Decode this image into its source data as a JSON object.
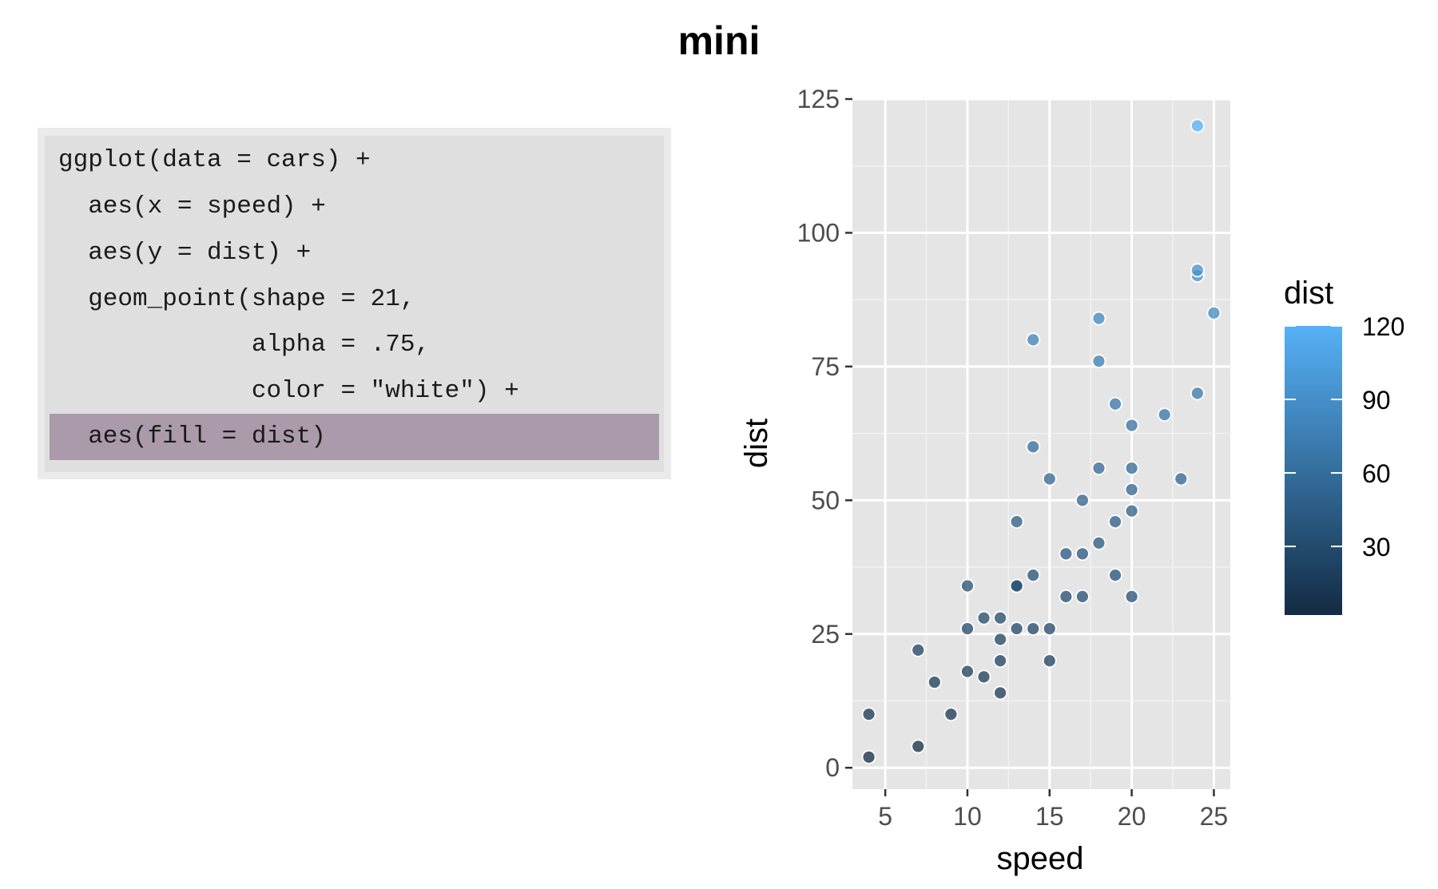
{
  "title": "mini",
  "code": {
    "lines": [
      "ggplot(data = cars) +",
      "  aes(x = speed) +",
      "  aes(y = dist) +",
      "  geom_point(shape = 21,",
      "             alpha = .75,",
      "             color = \"white\") +",
      "  aes(fill = dist)"
    ],
    "highlighted_line": 6,
    "highlight_color": "#aa9aaa"
  },
  "chart_data": {
    "type": "scatter",
    "xlabel": "speed",
    "ylabel": "dist",
    "xlim": [
      3.0,
      26.0
    ],
    "ylim": [
      -4,
      125
    ],
    "xticks": [
      5,
      10,
      15,
      20,
      25
    ],
    "yticks": [
      0,
      25,
      50,
      75,
      100,
      125
    ],
    "grid": true,
    "panel_background": "#e5e5e5",
    "legend": {
      "title": "dist",
      "type": "colorbar",
      "placement": "right",
      "breaks": [
        120,
        90,
        60,
        30
      ],
      "range": [
        2,
        120
      ],
      "low_color": "#132b43",
      "high_color": "#56b1f7"
    },
    "points": [
      {
        "x": 4,
        "y": 2
      },
      {
        "x": 4,
        "y": 10
      },
      {
        "x": 7,
        "y": 4
      },
      {
        "x": 7,
        "y": 22
      },
      {
        "x": 8,
        "y": 16
      },
      {
        "x": 9,
        "y": 10
      },
      {
        "x": 10,
        "y": 18
      },
      {
        "x": 10,
        "y": 26
      },
      {
        "x": 10,
        "y": 34
      },
      {
        "x": 11,
        "y": 17
      },
      {
        "x": 11,
        "y": 28
      },
      {
        "x": 12,
        "y": 14
      },
      {
        "x": 12,
        "y": 20
      },
      {
        "x": 12,
        "y": 24
      },
      {
        "x": 12,
        "y": 28
      },
      {
        "x": 13,
        "y": 26
      },
      {
        "x": 13,
        "y": 34
      },
      {
        "x": 13,
        "y": 34
      },
      {
        "x": 13,
        "y": 46
      },
      {
        "x": 14,
        "y": 26
      },
      {
        "x": 14,
        "y": 36
      },
      {
        "x": 14,
        "y": 60
      },
      {
        "x": 14,
        "y": 80
      },
      {
        "x": 15,
        "y": 20
      },
      {
        "x": 15,
        "y": 26
      },
      {
        "x": 15,
        "y": 54
      },
      {
        "x": 16,
        "y": 32
      },
      {
        "x": 16,
        "y": 40
      },
      {
        "x": 17,
        "y": 32
      },
      {
        "x": 17,
        "y": 40
      },
      {
        "x": 17,
        "y": 50
      },
      {
        "x": 18,
        "y": 42
      },
      {
        "x": 18,
        "y": 56
      },
      {
        "x": 18,
        "y": 76
      },
      {
        "x": 18,
        "y": 84
      },
      {
        "x": 19,
        "y": 36
      },
      {
        "x": 19,
        "y": 46
      },
      {
        "x": 19,
        "y": 68
      },
      {
        "x": 20,
        "y": 32
      },
      {
        "x": 20,
        "y": 48
      },
      {
        "x": 20,
        "y": 52
      },
      {
        "x": 20,
        "y": 56
      },
      {
        "x": 20,
        "y": 64
      },
      {
        "x": 22,
        "y": 66
      },
      {
        "x": 23,
        "y": 54
      },
      {
        "x": 24,
        "y": 70
      },
      {
        "x": 24,
        "y": 92
      },
      {
        "x": 24,
        "y": 93
      },
      {
        "x": 24,
        "y": 120
      },
      {
        "x": 25,
        "y": 85
      }
    ],
    "point_stroke": "#ffffff",
    "point_alpha": 0.75
  }
}
